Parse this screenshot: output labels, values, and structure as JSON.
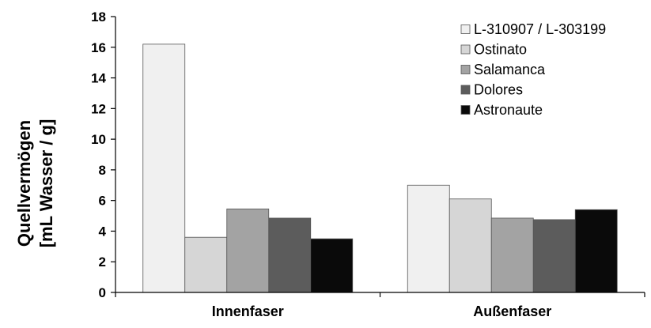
{
  "chart_data": {
    "type": "bar",
    "categories": [
      "Innenfaser",
      "Außenfaser"
    ],
    "series": [
      {
        "name": "L-310907 / L-303199",
        "color": "#f0f0f0",
        "values": [
          16.2,
          7.0
        ]
      },
      {
        "name": "Ostinato",
        "color": "#d6d6d6",
        "values": [
          3.6,
          6.1
        ]
      },
      {
        "name": "Salamanca",
        "color": "#a3a3a3",
        "values": [
          5.45,
          4.85
        ]
      },
      {
        "name": "Dolores",
        "color": "#5c5c5c",
        "values": [
          4.85,
          4.75
        ]
      },
      {
        "name": "Astronaute",
        "color": "#0a0a0a",
        "values": [
          3.5,
          5.4
        ]
      }
    ],
    "ylabel_line1": "Quellvermögen",
    "ylabel_line2": "[mL Wasser / g]",
    "ylim": [
      0,
      18
    ],
    "yticks": [
      "0",
      "2",
      "4",
      "6",
      "8",
      "10",
      "12",
      "14",
      "16",
      "18"
    ],
    "legend_position": "top-right",
    "grid": false
  }
}
